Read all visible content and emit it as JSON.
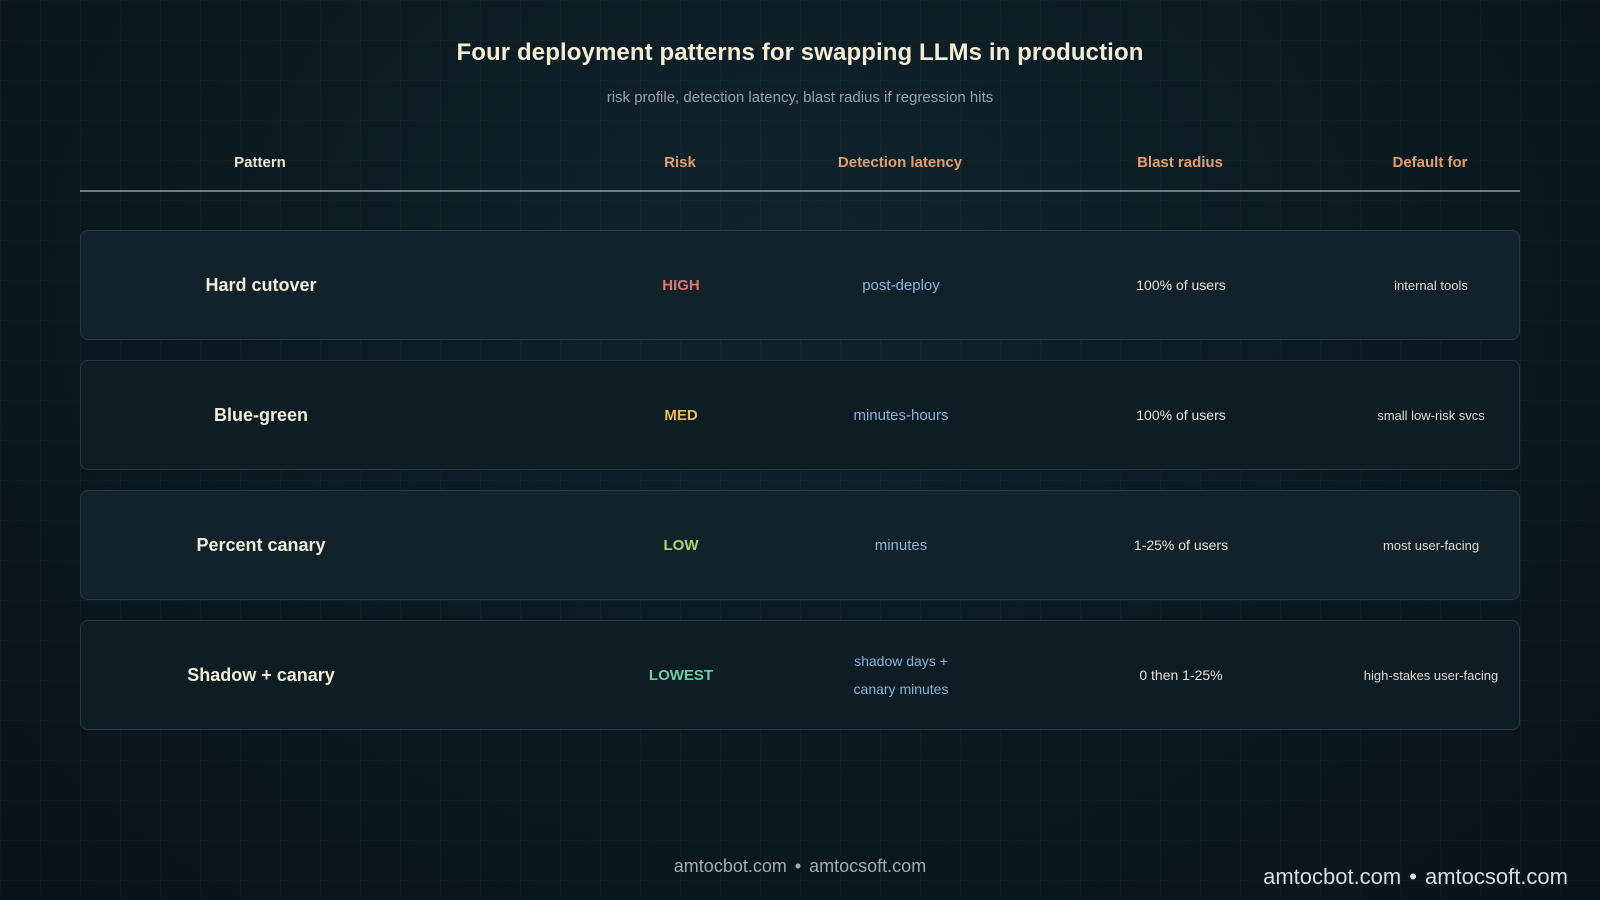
{
  "title": "Four deployment patterns for swapping LLMs in production",
  "subtitle": "risk profile, detection latency, blast radius if regression hits",
  "columns": [
    "Pattern",
    "Risk",
    "Detection latency",
    "Blast radius",
    "Default for"
  ],
  "rows": [
    {
      "pattern": "Hard cutover",
      "risk": "HIGH",
      "risk_color": "#e0736f",
      "detection": [
        "post-deploy"
      ],
      "blast": "100% of users",
      "default_for": "internal tools"
    },
    {
      "pattern": "Blue-green",
      "risk": "MED",
      "risk_color": "#e8bb5a",
      "detection": [
        "minutes-hours"
      ],
      "blast": "100% of users",
      "default_for": "small low-risk svcs"
    },
    {
      "pattern": "Percent canary",
      "risk": "LOW",
      "risk_color": "#a9d67a",
      "detection": [
        "minutes"
      ],
      "blast": "1-25% of users",
      "default_for": "most user-facing"
    },
    {
      "pattern": "Shadow + canary",
      "risk": "LOWEST",
      "risk_color": "#6fcc9c",
      "detection": [
        "shadow days +",
        "canary minutes"
      ],
      "blast": "0 then 1-25%",
      "default_for": "high-stakes user-facing"
    }
  ],
  "footer": {
    "site_a": "amtocbot.com",
    "separator": "•",
    "site_b": "amtocsoft.com"
  },
  "footer_corner": {
    "site_a": "amtocbot.com",
    "separator": "•",
    "site_b": "amtocsoft.com"
  }
}
